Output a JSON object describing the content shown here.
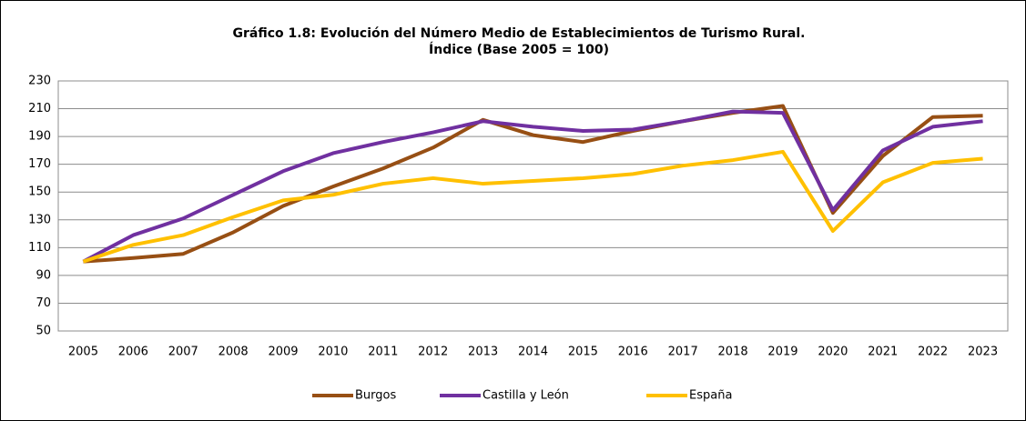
{
  "chart_data": {
    "type": "line",
    "title": [
      "Gráfico 1.8: Evolución del Número Medio de Establecimientos de Turismo Rural.",
      "Índice (Base 2005 = 100)"
    ],
    "categories": [
      "2005",
      "2006",
      "2007",
      "2008",
      "2009",
      "2010",
      "2011",
      "2012",
      "2013",
      "2014",
      "2015",
      "2016",
      "2017",
      "2018",
      "2019",
      "2020",
      "2021",
      "2022",
      "2023"
    ],
    "series": [
      {
        "name": "Burgos",
        "color": "#974f14",
        "values": [
          100,
          102.5,
          105.5,
          121,
          140,
          154,
          167,
          182,
          202,
          191,
          186,
          194,
          201,
          207,
          212,
          135,
          176,
          204,
          205
        ]
      },
      {
        "name": "Castilla y León",
        "color": "#7030a0",
        "values": [
          100,
          119,
          131,
          148,
          165,
          178,
          186,
          193,
          201,
          197,
          194,
          195,
          201,
          208,
          207,
          137,
          180,
          197,
          201
        ]
      },
      {
        "name": "España",
        "color": "#ffc000",
        "values": [
          100,
          112,
          119,
          132,
          144,
          148,
          156,
          160,
          156,
          158,
          160,
          163,
          169,
          173,
          179,
          122,
          157,
          171,
          174
        ]
      }
    ],
    "ylim": [
      50,
      230
    ],
    "yticks": [
      50,
      70,
      90,
      110,
      130,
      150,
      170,
      190,
      210,
      230
    ],
    "grid": true,
    "legend": "bottom"
  }
}
